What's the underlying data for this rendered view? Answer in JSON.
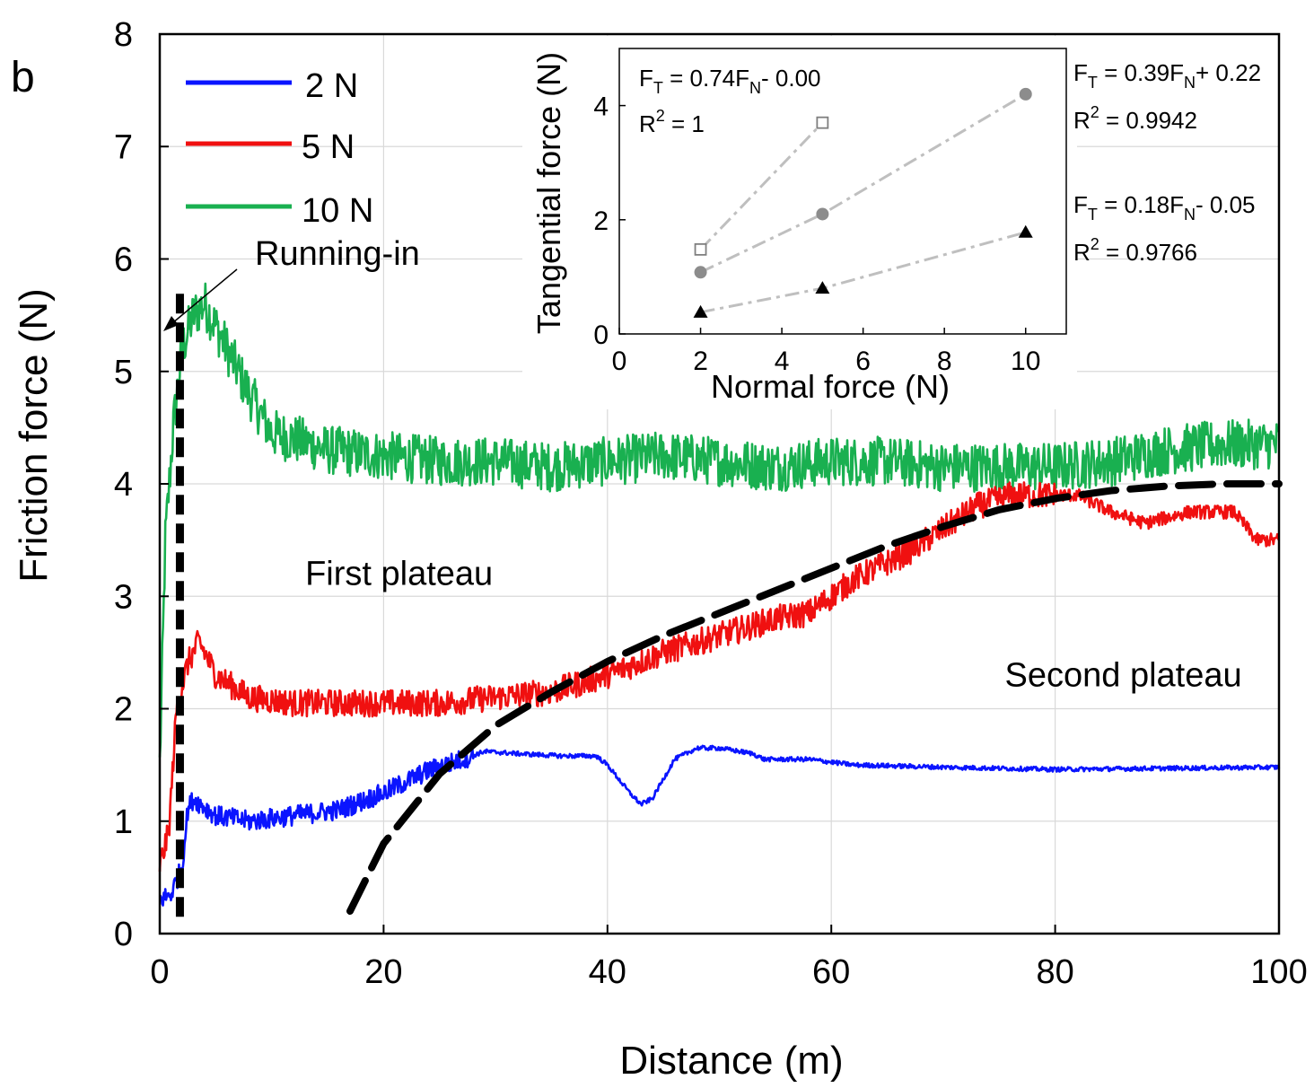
{
  "chart_data": {
    "type": "line",
    "panel_label": "b",
    "xlabel": "Distance (m)",
    "ylabel": "Friction force (N)",
    "xlim": [
      0,
      100
    ],
    "ylim": [
      0,
      8
    ],
    "xticks": [
      "0",
      "20",
      "40",
      "60",
      "80",
      "100"
    ],
    "yticks": [
      "0",
      "1",
      "2",
      "3",
      "4",
      "5",
      "6",
      "7",
      "8"
    ],
    "grid": true,
    "legend": {
      "placement": "top-left",
      "entries": [
        {
          "label": "2 N",
          "color": "#0a14ff"
        },
        {
          "label": "5 N",
          "color": "#f01010"
        },
        {
          "label": "10 N",
          "color": "#19b050"
        }
      ]
    },
    "series": [
      {
        "name": "2 N",
        "color": "#0a14ff",
        "noise": 0.09,
        "x": [
          0,
          1,
          2,
          2.5,
          3,
          5,
          8,
          12,
          16,
          20,
          24,
          27,
          29,
          32,
          36,
          39,
          40,
          42,
          43,
          44,
          46,
          48,
          50,
          53,
          54,
          55,
          58,
          62,
          70,
          80,
          90,
          100
        ],
        "y": [
          0.3,
          0.35,
          0.6,
          1.1,
          1.2,
          1.05,
          1.0,
          1.05,
          1.1,
          1.25,
          1.45,
          1.55,
          1.62,
          1.6,
          1.58,
          1.58,
          1.5,
          1.25,
          1.15,
          1.2,
          1.55,
          1.65,
          1.65,
          1.6,
          1.55,
          1.55,
          1.55,
          1.5,
          1.48,
          1.46,
          1.47,
          1.48
        ]
      },
      {
        "name": "5 N",
        "color": "#f01010",
        "noise": 0.12,
        "x": [
          0,
          0.8,
          1.5,
          2.5,
          3.5,
          5,
          8,
          12,
          16,
          20,
          25,
          30,
          35,
          40,
          45,
          50,
          55,
          58,
          62,
          65,
          67,
          70,
          73,
          76,
          78,
          80,
          82,
          85,
          88,
          92,
          96,
          98,
          100
        ],
        "y": [
          0.6,
          0.9,
          2.0,
          2.4,
          2.6,
          2.3,
          2.1,
          2.05,
          2.05,
          2.05,
          2.05,
          2.1,
          2.15,
          2.3,
          2.5,
          2.65,
          2.8,
          2.85,
          3.15,
          3.3,
          3.4,
          3.6,
          3.8,
          3.9,
          3.9,
          3.9,
          3.9,
          3.75,
          3.65,
          3.75,
          3.75,
          3.5,
          3.5
        ]
      },
      {
        "name": "10 N",
        "color": "#19b050",
        "noise": 0.22,
        "x": [
          0,
          0.5,
          1.2,
          2,
          3,
          4,
          6,
          8,
          10,
          12,
          15,
          20,
          25,
          30,
          35,
          40,
          45,
          50,
          55,
          60,
          65,
          70,
          75,
          80,
          85,
          90,
          95,
          100
        ],
        "y": [
          1.5,
          3.5,
          4.5,
          5.2,
          5.5,
          5.6,
          5.2,
          4.8,
          4.45,
          4.4,
          4.3,
          4.25,
          4.2,
          4.2,
          4.15,
          4.2,
          4.25,
          4.2,
          4.15,
          4.2,
          4.2,
          4.15,
          4.15,
          4.15,
          4.2,
          4.3,
          4.35,
          4.35
        ]
      }
    ],
    "annotations": [
      {
        "text": "Running-in",
        "x": 8.5,
        "y": 5.95
      },
      {
        "text": "First plateau",
        "x": 13,
        "y": 3.1
      },
      {
        "text": "Second plateau",
        "x": 75.5,
        "y": 2.2
      }
    ],
    "guides": {
      "running_in_x": 1.8,
      "running_in_y": [
        0.15,
        5.7
      ],
      "growth_curve": {
        "x": [
          17,
          20,
          25,
          30,
          35,
          40,
          45,
          50,
          55,
          60,
          65,
          70,
          75,
          80,
          85,
          90,
          95,
          100
        ],
        "y": [
          0.2,
          0.8,
          1.42,
          1.85,
          2.15,
          2.42,
          2.65,
          2.85,
          3.05,
          3.25,
          3.45,
          3.62,
          3.77,
          3.87,
          3.94,
          3.98,
          4.0,
          4.0
        ]
      }
    },
    "inset": {
      "type": "scatter",
      "xlabel": "Normal force (N)",
      "ylabel": "Tangential force (N)",
      "xlim": [
        0,
        11
      ],
      "ylim": [
        0,
        5
      ],
      "xticks": [
        "0",
        "2",
        "4",
        "6",
        "8",
        "10"
      ],
      "yticks": [
        "0",
        "2",
        "4"
      ],
      "series": [
        {
          "marker": "square-open",
          "x": [
            2,
            5
          ],
          "y": [
            1.48,
            3.7
          ],
          "fit": "FT = 0.74FN - 0.00",
          "r2": "R2 = 1"
        },
        {
          "marker": "circle",
          "x": [
            2,
            5,
            10
          ],
          "y": [
            1.08,
            2.1,
            4.2
          ],
          "fit": "FT = 0.39FN + 0.22",
          "r2": "R2 = 0.9942"
        },
        {
          "marker": "triangle",
          "x": [
            2,
            5,
            10
          ],
          "y": [
            0.38,
            0.8,
            1.78
          ],
          "fit": "FT = 0.18FN - 0.05",
          "r2": "R2 = 0.9766"
        }
      ],
      "equations": [
        {
          "pre": "F",
          "sub1": "T",
          "mid": " = 0.74F",
          "sub2": "N",
          "post": "- 0.00",
          "r2pre": "R",
          "r2post": " = 1"
        },
        {
          "pre": "F",
          "sub1": "T",
          "mid": " = 0.39F",
          "sub2": "N",
          "post": "+ 0.22",
          "r2pre": "R",
          "r2post": " = 0.9942"
        },
        {
          "pre": "F",
          "sub1": "T",
          "mid": " = 0.18F",
          "sub2": "N",
          "post": "- 0.05",
          "r2pre": "R",
          "r2post": " = 0.9766"
        }
      ],
      "r2_superscript": "2"
    }
  }
}
